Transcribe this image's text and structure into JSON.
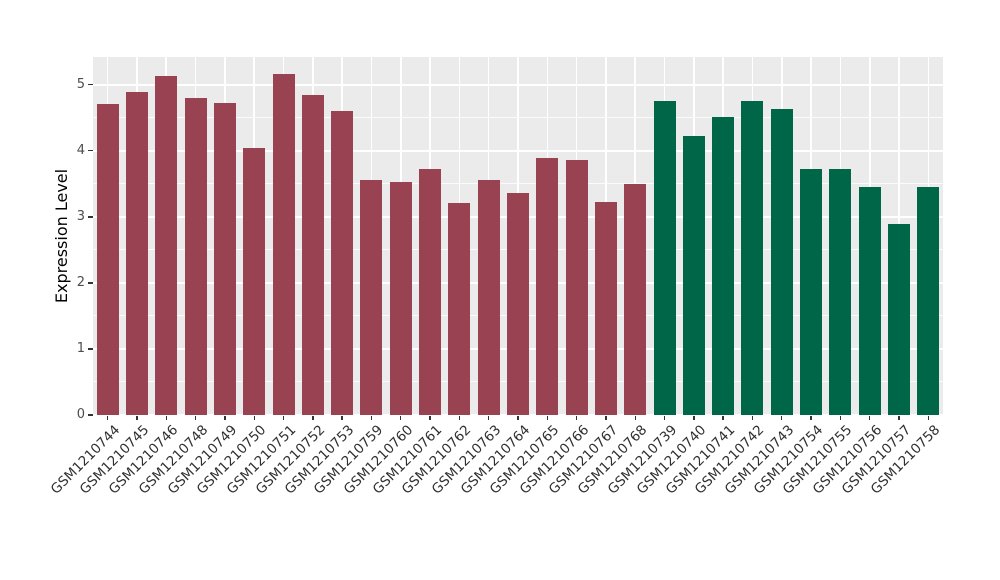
{
  "figure": {
    "background_color": "#ffffff",
    "panel_background_color": "#EBEBEB",
    "gridline_color": "#ffffff",
    "tick_label_color": "#4d4d4d",
    "axis_title_color": "#000000"
  },
  "chart_data": {
    "type": "bar",
    "title": "",
    "xlabel": "",
    "ylabel": "Expression Level",
    "ylim": [
      0,
      5.42
    ],
    "yticks": [
      0,
      1,
      2,
      3,
      4,
      5
    ],
    "yticks_minor": [
      0.5,
      1.5,
      2.5,
      3.5,
      4.5
    ],
    "grid": "white major and minor horizontal gridlines, white vertical gridlines at category centers, on gray panel",
    "legend_position": "none",
    "categories": [
      "GSM1210744",
      "GSM1210745",
      "GSM1210746",
      "GSM1210748",
      "GSM1210749",
      "GSM1210750",
      "GSM1210751",
      "GSM1210752",
      "GSM1210753",
      "GSM1210759",
      "GSM1210760",
      "GSM1210761",
      "GSM1210762",
      "GSM1210763",
      "GSM1210764",
      "GSM1210765",
      "GSM1210766",
      "GSM1210767",
      "GSM1210768",
      "GSM1210739",
      "GSM1210740",
      "GSM1210741",
      "GSM1210742",
      "GSM1210743",
      "GSM1210754",
      "GSM1210755",
      "GSM1210756",
      "GSM1210757",
      "GSM1210758"
    ],
    "values": [
      4.71,
      4.89,
      5.14,
      4.8,
      4.72,
      4.05,
      5.16,
      4.84,
      4.61,
      3.56,
      3.53,
      3.73,
      3.21,
      3.56,
      3.36,
      3.89,
      3.86,
      3.22,
      3.5,
      4.76,
      4.22,
      4.51,
      4.76,
      4.64,
      3.73,
      3.72,
      3.45,
      2.89,
      3.45
    ],
    "groups": [
      "group1",
      "group1",
      "group1",
      "group1",
      "group1",
      "group1",
      "group1",
      "group1",
      "group1",
      "group1",
      "group1",
      "group1",
      "group1",
      "group1",
      "group1",
      "group1",
      "group1",
      "group1",
      "group1",
      "group2",
      "group2",
      "group2",
      "group2",
      "group2",
      "group2",
      "group2",
      "group2",
      "group2",
      "group2"
    ],
    "group_colors": {
      "group1": "#994252",
      "group2": "#006648"
    }
  }
}
